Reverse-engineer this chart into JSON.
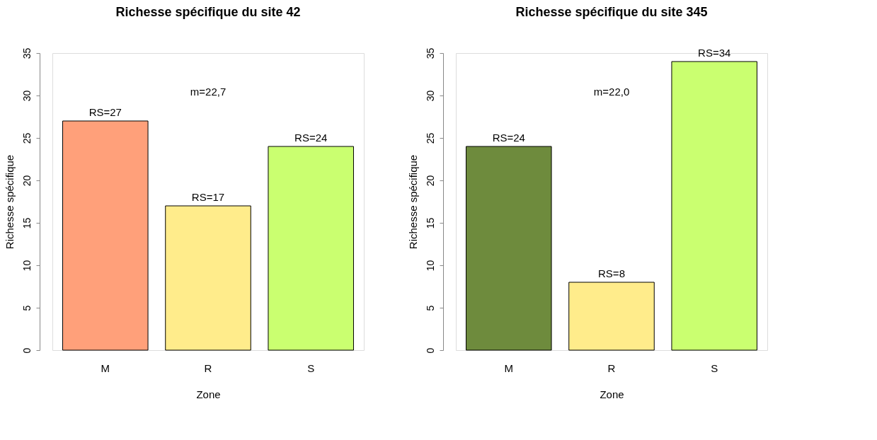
{
  "chart_data": [
    {
      "type": "bar",
      "title": "Richesse spécifique du site 42",
      "xlabel": "Zone",
      "ylabel": "Richesse spécifique",
      "categories": [
        "M",
        "R",
        "S"
      ],
      "values": [
        27,
        17,
        24
      ],
      "colors": [
        "#ffa07a",
        "#ffec8b",
        "#caff70"
      ],
      "value_labels": [
        "RS=27",
        "RS=17",
        "RS=24"
      ],
      "ylim": [
        0,
        35
      ],
      "yticks": [
        0,
        5,
        10,
        15,
        20,
        25,
        30,
        35
      ],
      "annotations": [
        "m=22,7"
      ],
      "grid": false
    },
    {
      "type": "bar",
      "title": "Richesse spécifique du site 345",
      "xlabel": "Zone",
      "ylabel": "Richesse spécifique",
      "categories": [
        "M",
        "R",
        "S"
      ],
      "values": [
        24,
        8,
        34
      ],
      "colors": [
        "#6e8b3d",
        "#ffec8b",
        "#caff70"
      ],
      "value_labels": [
        "RS=24",
        "RS=8",
        "RS=34"
      ],
      "ylim": [
        0,
        35
      ],
      "yticks": [
        0,
        5,
        10,
        15,
        20,
        25,
        30,
        35
      ],
      "annotations": [
        "m=22,0"
      ],
      "grid": false
    }
  ]
}
